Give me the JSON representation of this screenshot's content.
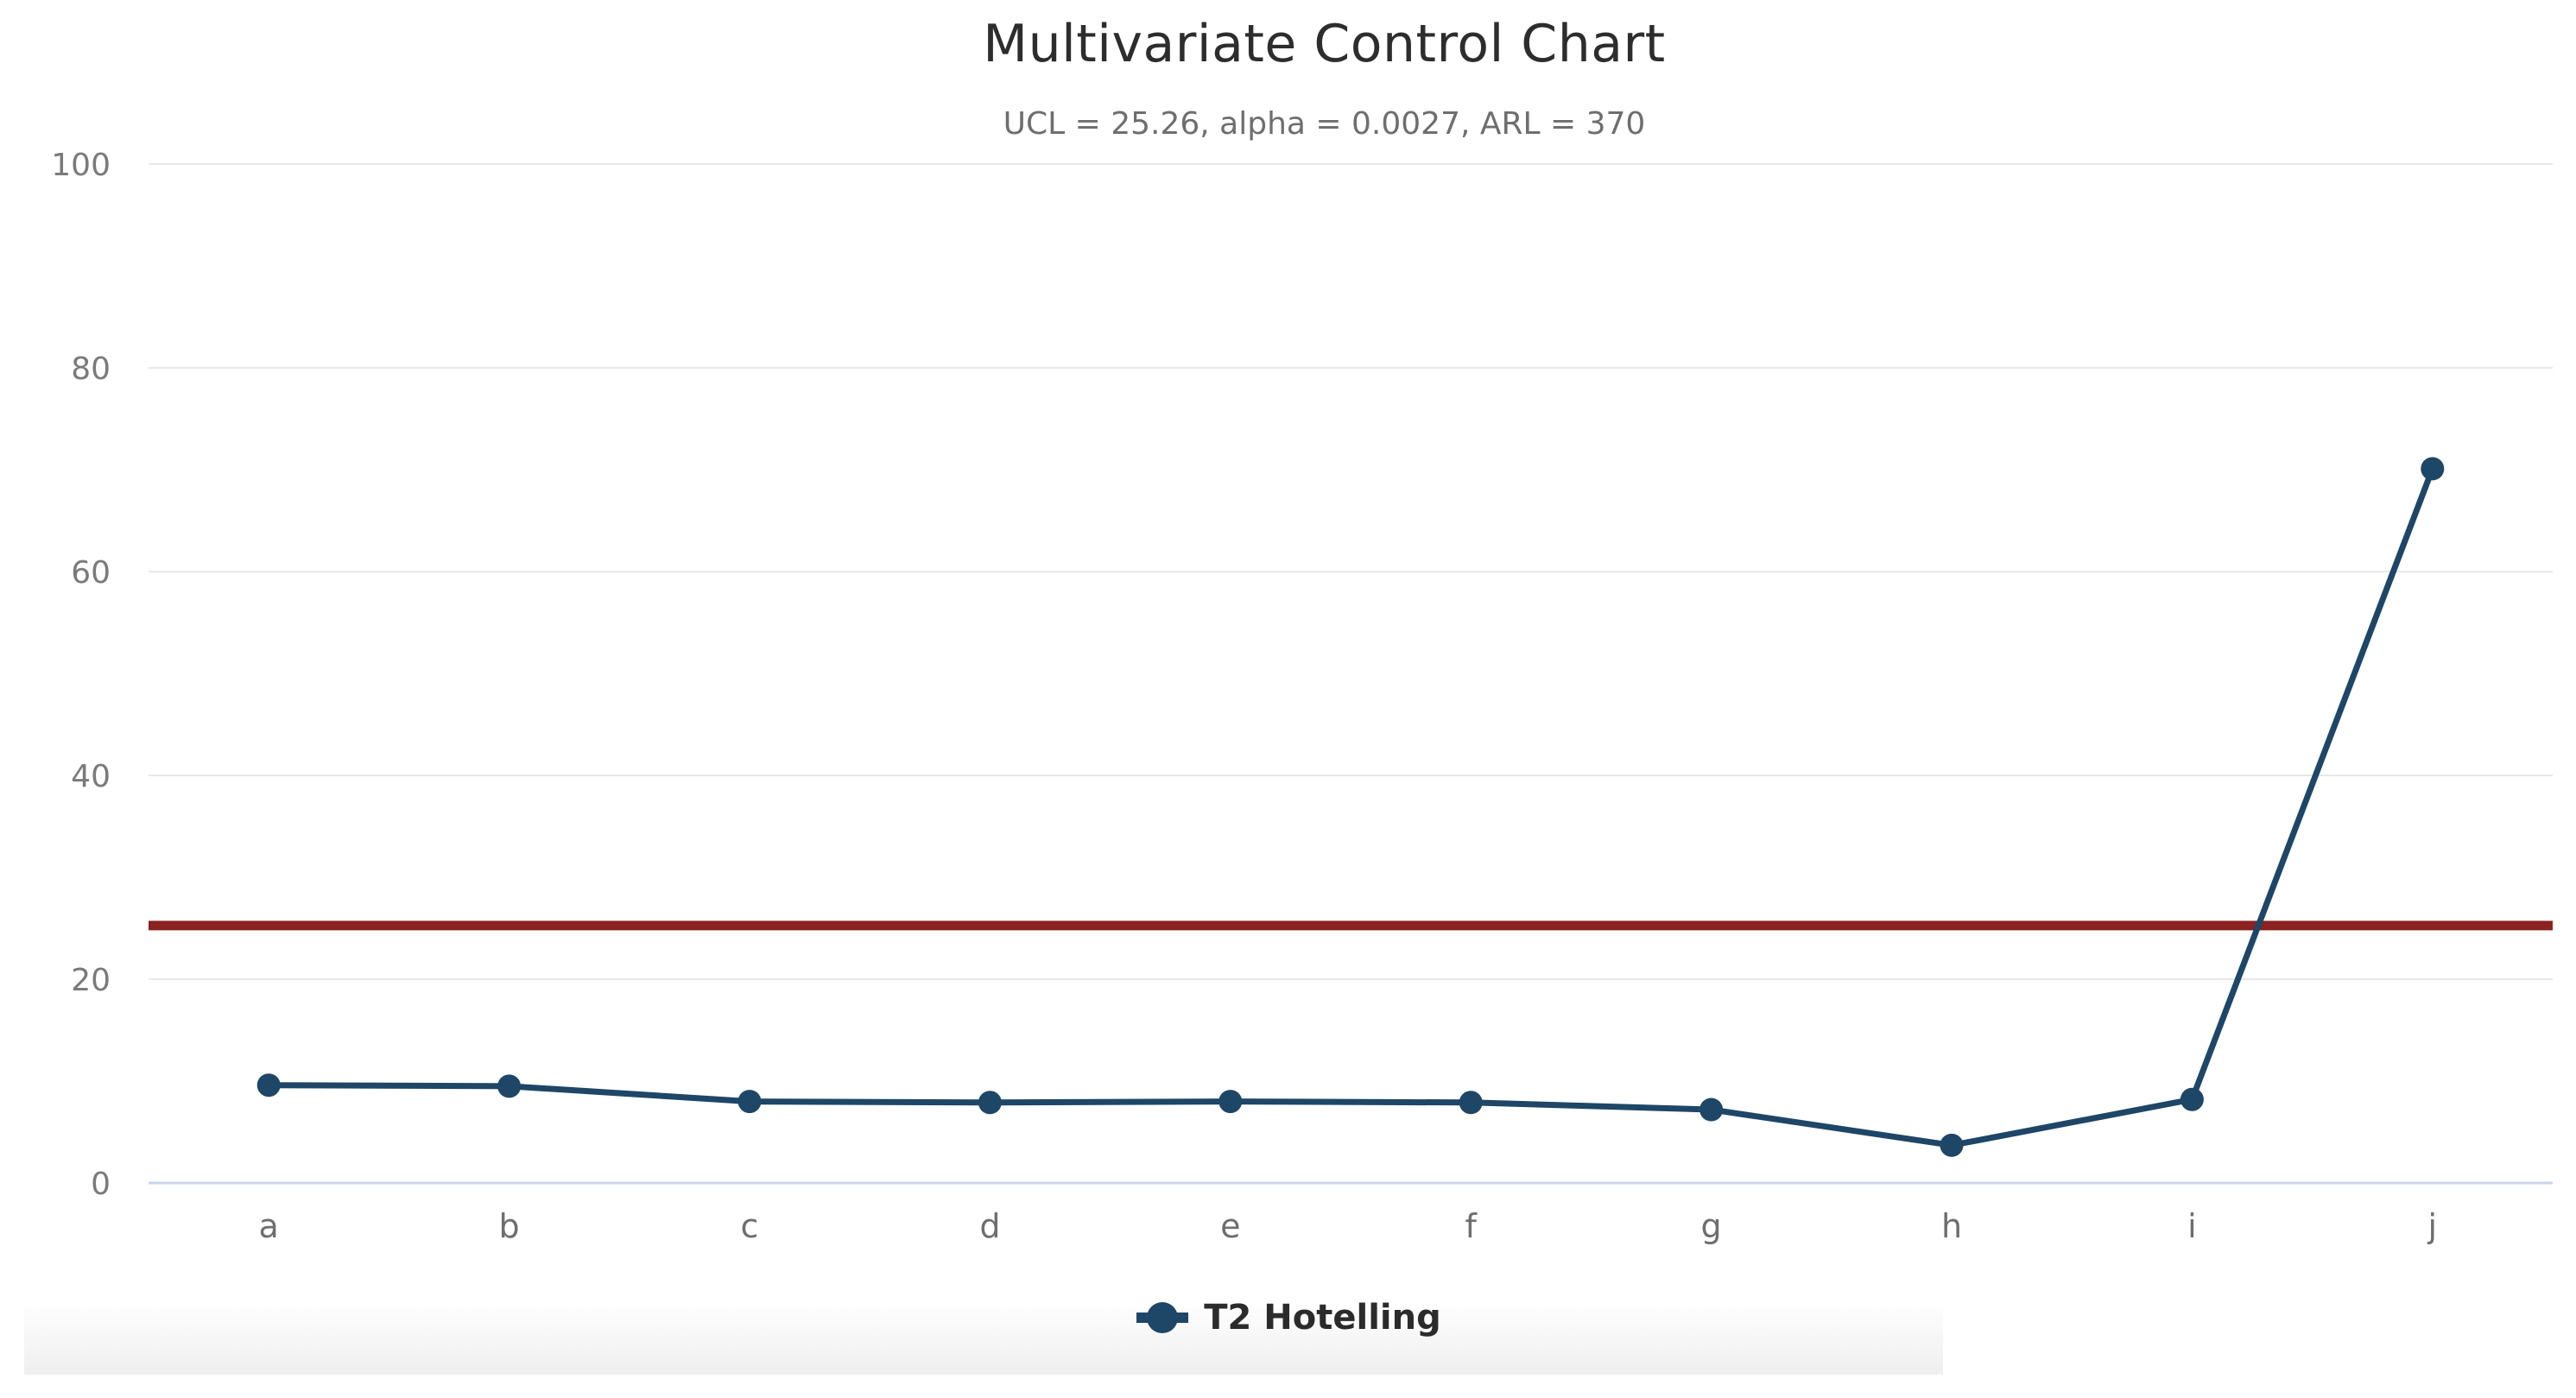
{
  "header": {
    "title": "Multivariate Control Chart",
    "subtitle": "UCL = 25.26, alpha = 0.0027, ARL = 370"
  },
  "chart_data": {
    "type": "line",
    "title": "Multivariate Control Chart",
    "subtitle": "UCL = 25.26, alpha = 0.0027, ARL = 370",
    "categories": [
      "a",
      "b",
      "c",
      "d",
      "e",
      "f",
      "g",
      "h",
      "i",
      "j"
    ],
    "series": [
      {
        "name": "T2 Hotelling",
        "color": "#1E4667",
        "values": [
          9.6,
          9.5,
          8.0,
          7.9,
          8.0,
          7.9,
          7.2,
          3.7,
          8.2,
          70.1
        ]
      }
    ],
    "reference_lines": [
      {
        "label": "UCL",
        "value": 25.26,
        "color": "#8B2121"
      }
    ],
    "ylim": [
      0,
      100
    ],
    "yticks": [
      0,
      20,
      40,
      60,
      80,
      100
    ],
    "grid": true,
    "legend_position": "bottom",
    "colors": {
      "grid": "#E8E8E8",
      "zero_line": "#C9D5EA",
      "y_tick_label": "#7A7A7A",
      "x_tick_label": "#6E6E6E"
    }
  }
}
